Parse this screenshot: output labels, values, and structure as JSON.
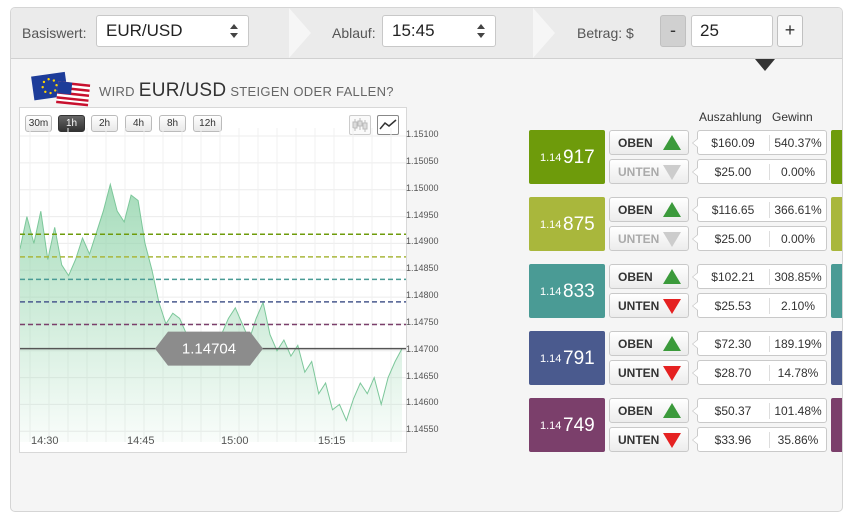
{
  "toolbar": {
    "asset_label": "Basiswert:",
    "asset_value": "EUR/USD",
    "expiry_label": "Ablauf:",
    "expiry_value": "15:45",
    "amount_label": "Betrag: $",
    "amount_value": "25",
    "minus_label": "-",
    "plus_label": "+"
  },
  "question": {
    "prefix": "WIRD",
    "asset": "EUR/USD",
    "suffix": "STEIGEN ODER FALLEN?"
  },
  "timeframes": [
    "30m",
    "1h",
    "2h",
    "4h",
    "8h",
    "12h"
  ],
  "active_timeframe": "1h",
  "chart_types": [
    "candlestick-icon",
    "line-chart-icon"
  ],
  "current_price": "1.14704",
  "table_headers": {
    "payout": "Auszahlung",
    "profit": "Gewinn"
  },
  "rows": [
    {
      "strike_prefix": "1.14",
      "strike_last": "917",
      "color": "#6e9b0b",
      "up": {
        "label": "OBEN",
        "enabled": true,
        "payout": "$160.09",
        "profit": "540.37%"
      },
      "down": {
        "label": "UNTEN",
        "enabled": false,
        "payout": "$25.00",
        "profit": "0.00%"
      }
    },
    {
      "strike_prefix": "1.14",
      "strike_last": "875",
      "color": "#a9b73c",
      "up": {
        "label": "OBEN",
        "enabled": true,
        "payout": "$116.65",
        "profit": "366.61%"
      },
      "down": {
        "label": "UNTEN",
        "enabled": false,
        "payout": "$25.00",
        "profit": "0.00%"
      }
    },
    {
      "strike_prefix": "1.14",
      "strike_last": "833",
      "color": "#4a9b95",
      "up": {
        "label": "OBEN",
        "enabled": true,
        "payout": "$102.21",
        "profit": "308.85%"
      },
      "down": {
        "label": "UNTEN",
        "enabled": true,
        "payout": "$25.53",
        "profit": "2.10%"
      }
    },
    {
      "strike_prefix": "1.14",
      "strike_last": "791",
      "color": "#4a5a8e",
      "up": {
        "label": "OBEN",
        "enabled": true,
        "payout": "$72.30",
        "profit": "189.19%"
      },
      "down": {
        "label": "UNTEN",
        "enabled": true,
        "payout": "$28.70",
        "profit": "14.78%"
      }
    },
    {
      "strike_prefix": "1.14",
      "strike_last": "749",
      "color": "#7b3f6b",
      "up": {
        "label": "OBEN",
        "enabled": true,
        "payout": "$50.37",
        "profit": "101.48%"
      },
      "down": {
        "label": "UNTEN",
        "enabled": true,
        "payout": "$33.96",
        "profit": "35.86%"
      }
    }
  ],
  "chart_data": {
    "type": "area",
    "y_ticks": [
      "1.15100",
      "1.15050",
      "1.15000",
      "1.14950",
      "1.14900",
      "1.14850",
      "1.14800",
      "1.14750",
      "1.14700",
      "1.14650",
      "1.14600",
      "1.14550"
    ],
    "x_ticks": [
      "14:30",
      "14:45",
      "15:00",
      "15:15"
    ],
    "ylim": [
      1.1453,
      1.15115
    ],
    "series_color": "#8fd3a9",
    "price_points": [
      1.1489,
      1.1495,
      1.149,
      1.1496,
      1.1487,
      1.1493,
      1.1486,
      1.1484,
      1.1487,
      1.1491,
      1.1488,
      1.1492,
      1.1496,
      1.1501,
      1.1496,
      1.1494,
      1.1499,
      1.1498,
      1.149,
      1.1485,
      1.1479,
      1.1475,
      1.1477,
      1.1476,
      1.1473,
      1.147,
      1.1472,
      1.1468,
      1.1469,
      1.1473,
      1.1476,
      1.1478,
      1.1475,
      1.1472,
      1.1476,
      1.1479,
      1.1473,
      1.147,
      1.1472,
      1.1469,
      1.1471,
      1.1466,
      1.1468,
      1.1462,
      1.1464,
      1.1459,
      1.146,
      1.1457,
      1.1461,
      1.1464,
      1.1462,
      1.1465,
      1.146,
      1.1465,
      1.1468,
      1.14704
    ],
    "strike_lines": [
      {
        "value": 1.14917,
        "color": "#6e9b0b"
      },
      {
        "value": 1.14875,
        "color": "#a9b73c"
      },
      {
        "value": 1.14833,
        "color": "#4a9b95"
      },
      {
        "value": 1.14791,
        "color": "#4a5a8e"
      },
      {
        "value": 1.14749,
        "color": "#7b3f6b"
      }
    ],
    "current_line": 1.14704
  }
}
